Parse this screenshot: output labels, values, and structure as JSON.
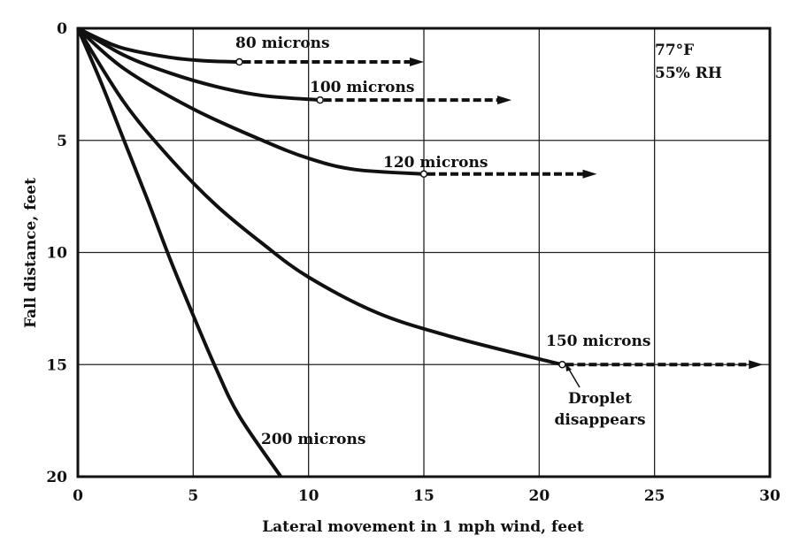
{
  "chart_data": {
    "type": "line",
    "title": "",
    "xlabel": "Lateral movement in 1 mph wind, feet",
    "ylabel": "Fall distance, feet",
    "xlim": [
      0,
      30
    ],
    "ylim": [
      0,
      20
    ],
    "y_inverted": true,
    "grid": true,
    "xticks": [
      "0",
      "5",
      "10",
      "15",
      "20",
      "25",
      "30"
    ],
    "yticks": [
      "0",
      "5",
      "10",
      "15",
      "20"
    ],
    "conditions": [
      "77°F",
      "55% RH"
    ],
    "series": [
      {
        "name": "80 microns",
        "points": [
          [
            0,
            0
          ],
          [
            1,
            0.5
          ],
          [
            2,
            0.9
          ],
          [
            4,
            1.3
          ],
          [
            5.5,
            1.45
          ],
          [
            7,
            1.5
          ]
        ],
        "evaporation_point": [
          7,
          1.5
        ],
        "drift_end": [
          15,
          1.5
        ]
      },
      {
        "name": "100 microns",
        "points": [
          [
            0,
            0
          ],
          [
            2,
            1.2
          ],
          [
            4,
            2.0
          ],
          [
            6,
            2.6
          ],
          [
            8,
            3.0
          ],
          [
            10.5,
            3.2
          ]
        ],
        "evaporation_point": [
          10.5,
          3.2
        ],
        "drift_end": [
          18.8,
          3.2
        ]
      },
      {
        "name": "120 microns",
        "points": [
          [
            0,
            0
          ],
          [
            2,
            1.8
          ],
          [
            5,
            3.6
          ],
          [
            8,
            5.0
          ],
          [
            10,
            5.8
          ],
          [
            12,
            6.3
          ],
          [
            15,
            6.5
          ]
        ],
        "evaporation_point": [
          15,
          6.5
        ],
        "drift_end": [
          22.5,
          6.5
        ]
      },
      {
        "name": "150 microns",
        "points": [
          [
            0,
            0
          ],
          [
            2,
            3.3
          ],
          [
            4,
            5.8
          ],
          [
            6,
            7.9
          ],
          [
            8,
            9.6
          ],
          [
            10,
            11.1
          ],
          [
            13,
            12.7
          ],
          [
            16,
            13.7
          ],
          [
            19,
            14.5
          ],
          [
            21,
            15
          ]
        ],
        "evaporation_point": [
          21,
          15
        ],
        "drift_end": [
          29.7,
          15
        ]
      },
      {
        "name": "200 microns",
        "points": [
          [
            0,
            0
          ],
          [
            1,
            2.4
          ],
          [
            2,
            5.0
          ],
          [
            3,
            7.6
          ],
          [
            4,
            10.3
          ],
          [
            5,
            12.8
          ],
          [
            6,
            15.2
          ],
          [
            7,
            17.3
          ],
          [
            8.8,
            20
          ]
        ]
      }
    ],
    "annotations": [
      "Droplet",
      "disappears"
    ]
  }
}
